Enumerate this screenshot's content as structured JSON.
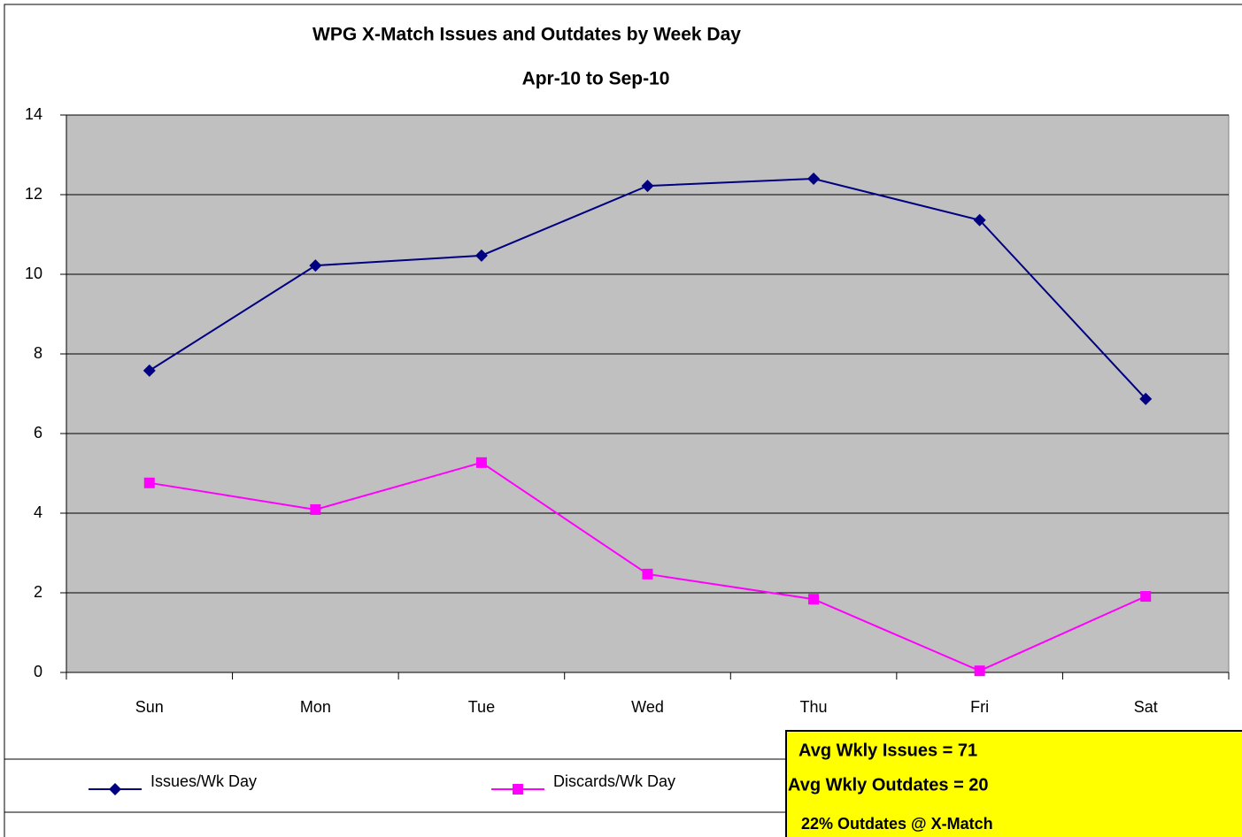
{
  "chart_data": {
    "type": "line",
    "title": "WPG X-Match Issues and Outdates by Week Day",
    "subtitle": "Apr-10 to Sep-10",
    "categories": [
      "Sun",
      "Mon",
      "Tue",
      "Wed",
      "Thu",
      "Fri",
      "Sat"
    ],
    "series": [
      {
        "name": "Issues/Wk Day",
        "color": "#000080",
        "marker": "diamond",
        "values": [
          7.58,
          10.22,
          10.47,
          12.22,
          12.4,
          11.36,
          6.87
        ]
      },
      {
        "name": "Discards/Wk Day",
        "color": "#ff00ff",
        "marker": "square",
        "values": [
          4.76,
          4.09,
          5.27,
          2.47,
          1.84,
          0.04,
          1.91
        ]
      }
    ],
    "ylim": [
      0,
      14
    ],
    "yticks": [
      0,
      2,
      4,
      6,
      8,
      10,
      12,
      14
    ],
    "grid": true,
    "annotations": [
      "Avg Wkly Issues = 71",
      "Avg Wkly Outdates = 20",
      "22% Outdates @ X-Match"
    ]
  }
}
